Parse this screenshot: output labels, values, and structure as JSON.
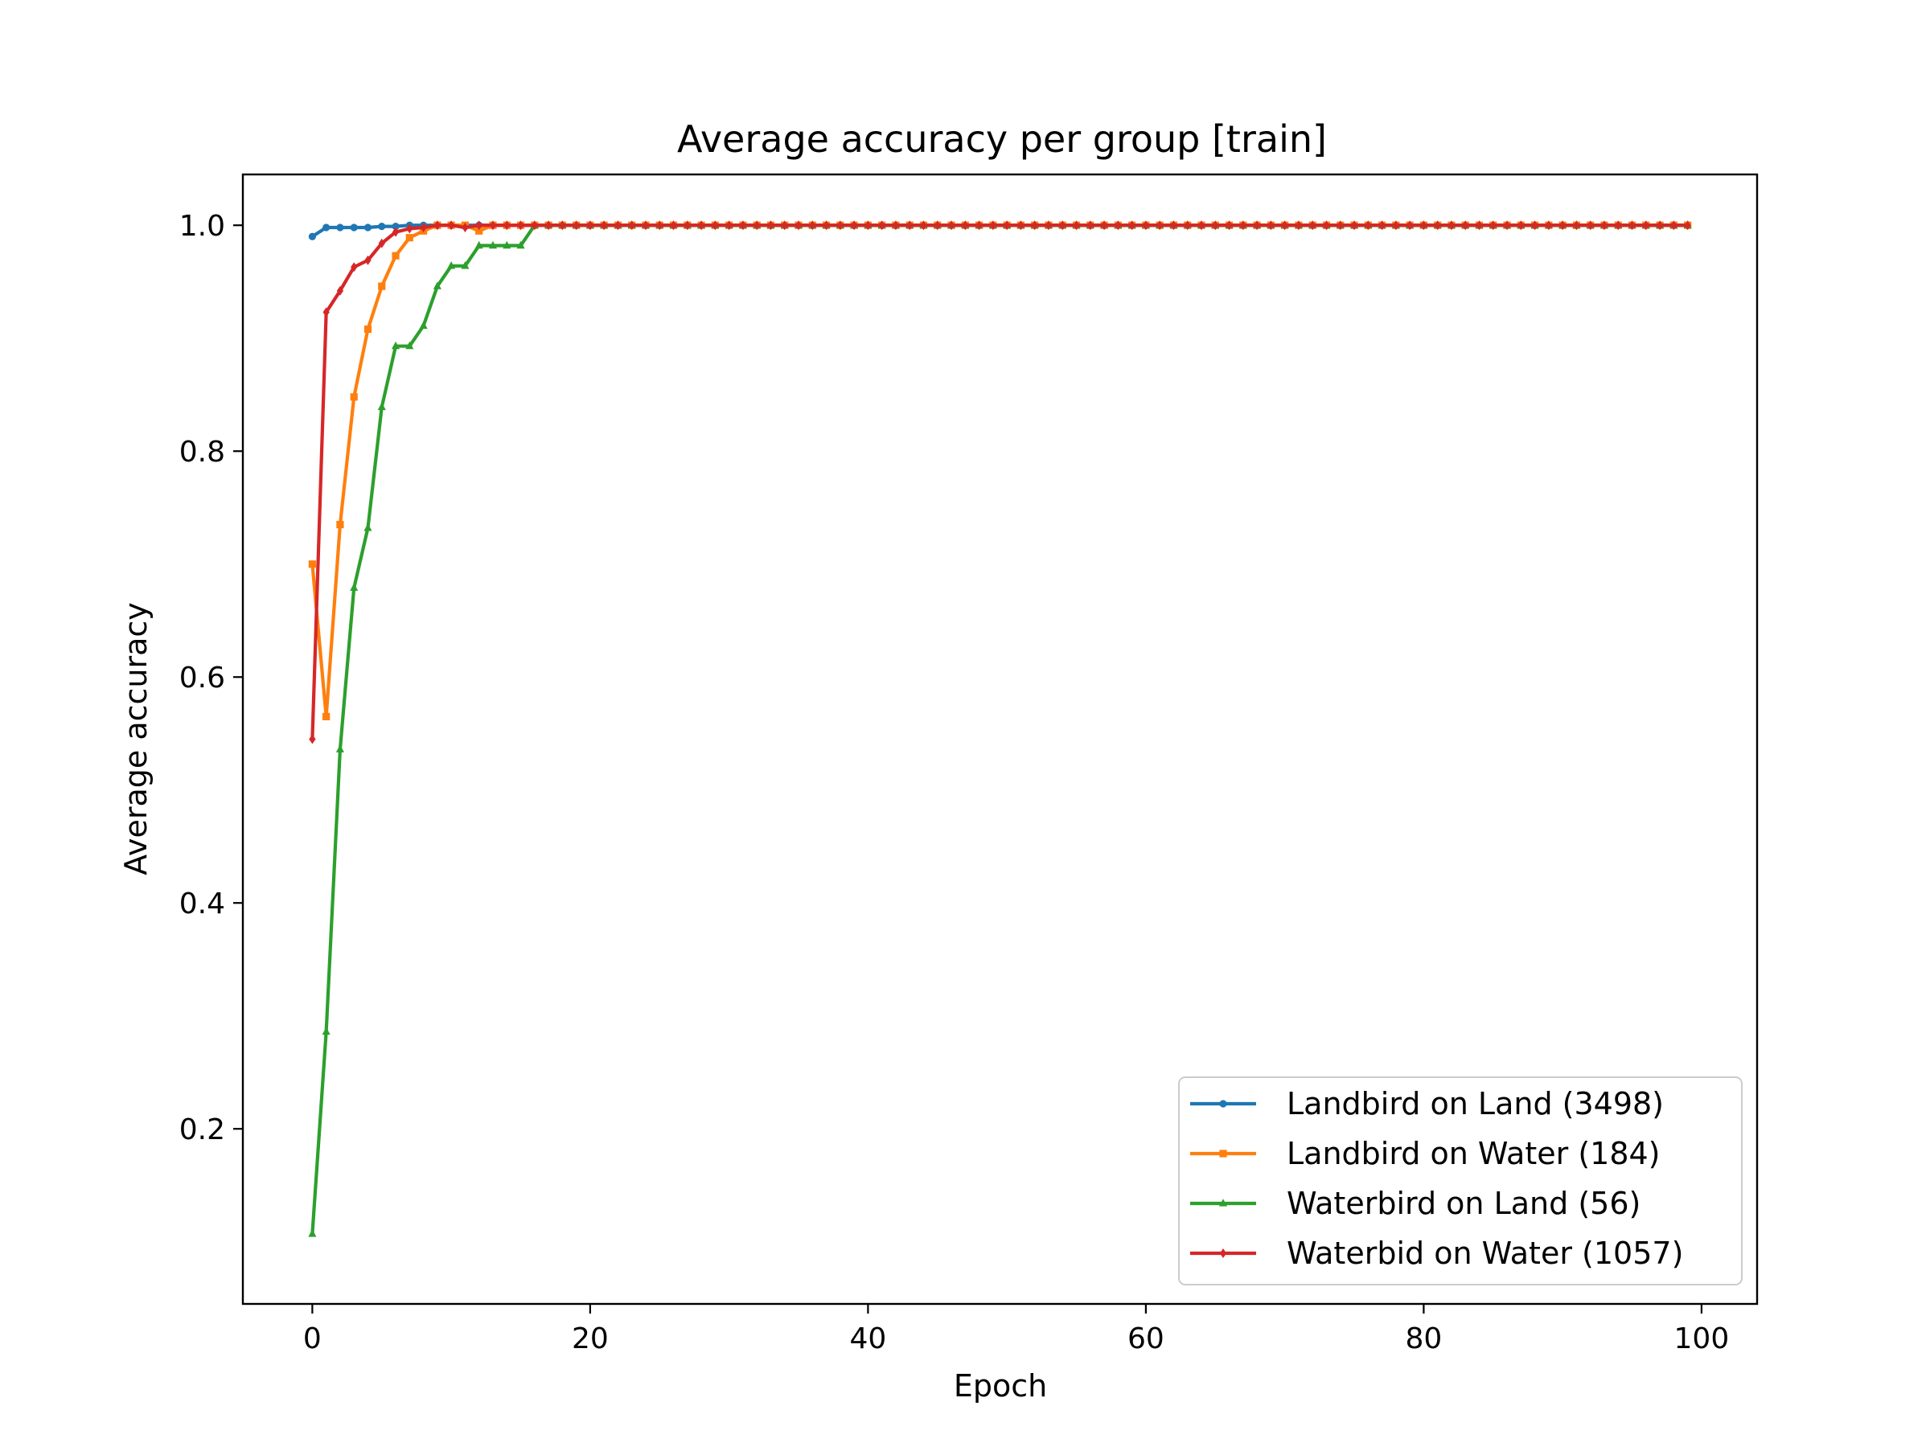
{
  "chart_data": {
    "type": "line",
    "title": "Average accuracy per group [train]",
    "xlabel": "Epoch",
    "ylabel": "Average accuracy",
    "xlim": [
      -5,
      104
    ],
    "ylim": [
      0.045,
      1.045
    ],
    "xticks": [
      0,
      20,
      40,
      60,
      80,
      100
    ],
    "yticks": [
      0.2,
      0.4,
      0.6,
      0.8,
      1.0
    ],
    "xtick_labels": [
      "0",
      "20",
      "40",
      "60",
      "80",
      "100"
    ],
    "ytick_labels": [
      "0.2",
      "0.4",
      "0.6",
      "0.8",
      "1.0"
    ],
    "grid": false,
    "legend_position": "lower-right",
    "series": [
      {
        "name": "Landbird on Land (3498)",
        "color": "#1f77b4",
        "marker": "circle",
        "start": [
          0.99,
          0.998,
          0.998,
          0.998,
          0.998,
          0.999,
          0.999,
          1.0,
          1.0,
          1.0
        ]
      },
      {
        "name": "Landbird on Water (184)",
        "color": "#ff7f0e",
        "marker": "square",
        "start": [
          0.7,
          0.565,
          0.735,
          0.848,
          0.908,
          0.946,
          0.973,
          0.989,
          0.995,
          1.0,
          1.0,
          1.0,
          0.995
        ]
      },
      {
        "name": "Waterbird on Land (56)",
        "color": "#2ca02c",
        "marker": "triangle",
        "start": [
          0.107,
          0.286,
          0.536,
          0.679,
          0.732,
          0.839,
          0.893,
          0.893,
          0.911,
          0.946,
          0.964,
          0.964,
          0.982,
          0.982,
          0.982,
          0.982
        ]
      },
      {
        "name": "Waterbid on Water (1057)",
        "color": "#d62728",
        "marker": "diamond",
        "start": [
          0.545,
          0.923,
          0.942,
          0.963,
          0.969,
          0.984,
          0.994,
          0.997,
          0.998,
          1.0,
          1.0,
          0.998
        ]
      }
    ],
    "epochs": 100,
    "plateau_value": 1.0
  }
}
